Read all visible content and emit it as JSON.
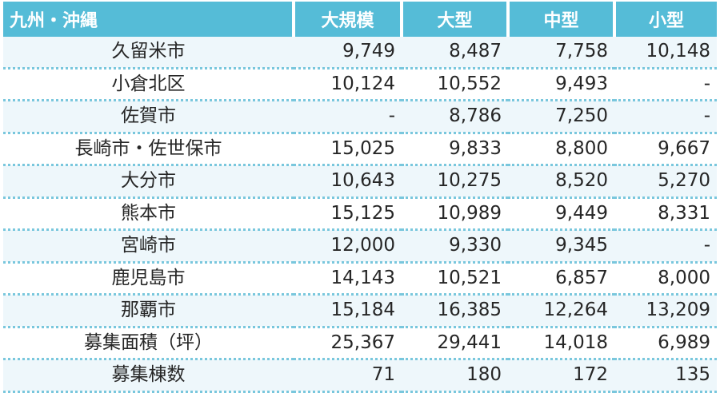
{
  "header": {
    "region": "九州・沖縄",
    "columns": [
      "大規模",
      "大型",
      "中型",
      "小型"
    ]
  },
  "rows": [
    {
      "name": "久留米市",
      "values": [
        "9,749",
        "8,487",
        "7,758",
        "10,148"
      ]
    },
    {
      "name": "小倉北区",
      "values": [
        "10,124",
        "10,552",
        "9,493",
        "-"
      ]
    },
    {
      "name": "佐賀市",
      "values": [
        "-",
        "8,786",
        "7,250",
        "-"
      ]
    },
    {
      "name": "長崎市・佐世保市",
      "values": [
        "15,025",
        "9,833",
        "8,800",
        "9,667"
      ]
    },
    {
      "name": "大分市",
      "values": [
        "10,643",
        "10,275",
        "8,520",
        "5,270"
      ]
    },
    {
      "name": "熊本市",
      "values": [
        "15,125",
        "10,989",
        "9,449",
        "8,331"
      ]
    },
    {
      "name": "宮崎市",
      "values": [
        "12,000",
        "9,330",
        "9,345",
        "-"
      ]
    },
    {
      "name": "鹿児島市",
      "values": [
        "14,143",
        "10,521",
        "6,857",
        "8,000"
      ]
    },
    {
      "name": "那覇市",
      "values": [
        "15,184",
        "16,385",
        "12,264",
        "13,209"
      ]
    },
    {
      "name": "募集面積（坪）",
      "values": [
        "25,367",
        "29,441",
        "14,018",
        "6,989"
      ]
    },
    {
      "name": "募集棟数",
      "values": [
        "71",
        "180",
        "172",
        "135"
      ]
    }
  ],
  "colors": {
    "header_bg": "#55bcd7",
    "stripe_bg": "#eef7fb",
    "dotted_border": "#79c7dd"
  }
}
